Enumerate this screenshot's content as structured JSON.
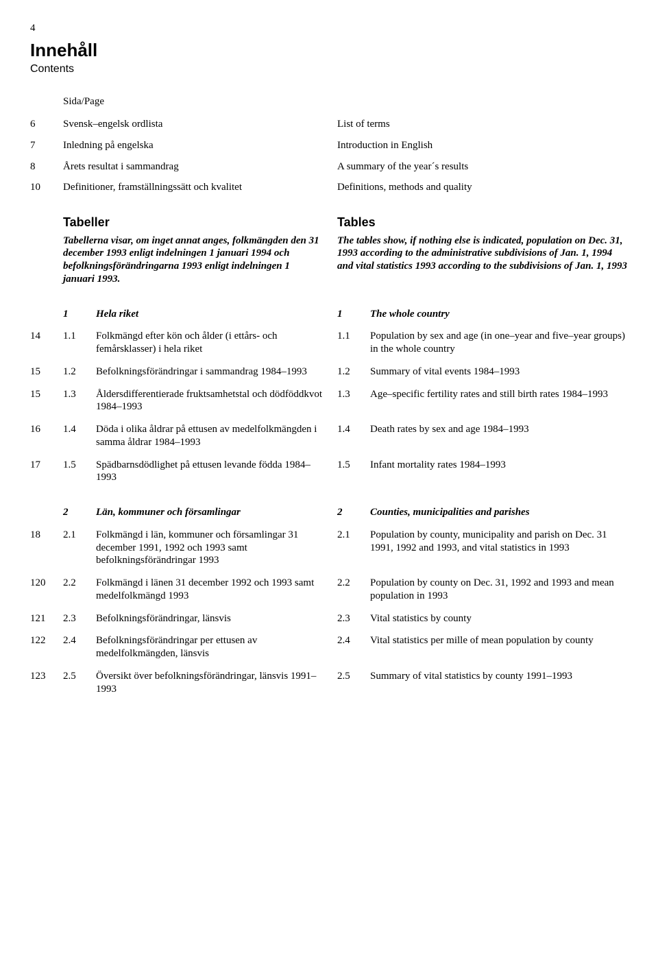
{
  "pageNumber": "4",
  "title": "Innehåll",
  "subtitle": "Contents",
  "sidaLabel": "Sida/Page",
  "topItems": [
    {
      "page": "6",
      "sv": "Svensk–engelsk ordlista",
      "en": "List of terms"
    },
    {
      "page": "7",
      "sv": "Inledning på engelska",
      "en": "Introduction in English"
    },
    {
      "page": "8",
      "sv": "Årets resultat i sammandrag",
      "en": "A summary of the year´s results"
    },
    {
      "page": "10",
      "sv": "Definitioner, framställningssätt och kvalitet",
      "en": "Definitions, methods and quality"
    }
  ],
  "tabeller": {
    "headSv": "Tabeller",
    "noteSv": "Tabellerna visar, om inget annat anges, folkmängden den 31 december 1993 enligt indelningen 1 januari 1994 och befolkningsförändringarna 1993 enligt indelningen 1 januari 1993.",
    "headEn": "Tables",
    "noteEn": "The tables show, if nothing else is indicated, population on Dec. 31, 1993 according to the administrative subdivisions of Jan. 1, 1994 and vital statistics 1993 according to the subdivisions of Jan. 1, 1993"
  },
  "section1": {
    "numSv": "1",
    "titleSv": "Hela riket",
    "numEn": "1",
    "titleEn": "The whole country",
    "items": [
      {
        "page": "14",
        "num": "1.1",
        "sv": "Folkmängd efter kön och ålder (i ettårs- och femårsklasser) i hela riket",
        "en": "Population by sex and age (in one–year and five–year groups) in the whole country"
      },
      {
        "page": "15",
        "num": "1.2",
        "sv": "Befolkningsförändringar i sammandrag 1984–1993",
        "en": "Summary of vital events 1984–1993"
      },
      {
        "page": "15",
        "num": "1.3",
        "sv": "Åldersdifferentierade fruktsamhetstal och dödföddkvot 1984–1993",
        "en": "Age–specific fertility rates and still birth rates 1984–1993"
      },
      {
        "page": "16",
        "num": "1.4",
        "sv": "Döda i olika åldrar på ettusen av medelfolkmängden i samma åldrar 1984–1993",
        "en": "Death rates by sex and age 1984–1993"
      },
      {
        "page": "17",
        "num": "1.5",
        "sv": "Spädbarnsdödlighet på ettusen levande födda 1984–1993",
        "en": "Infant mortality rates 1984–1993"
      }
    ]
  },
  "section2": {
    "numSv": "2",
    "titleSv": "Län, kommuner och församlingar",
    "numEn": "2",
    "titleEn": "Counties, municipalities and parishes",
    "items": [
      {
        "page": "18",
        "num": "2.1",
        "sv": "Folkmängd i län, kommuner och församlingar 31 december 1991, 1992 och 1993 samt befolkningsförändringar 1993",
        "en": "Population by county, municipality and parish on Dec. 31 1991, 1992 and 1993, and vital statistics in 1993"
      },
      {
        "page": "120",
        "num": "2.2",
        "sv": "Folkmängd i länen 31 december 1992 och 1993 samt medelfolkmängd 1993",
        "en": "Population by county on Dec. 31, 1992 and 1993 and mean population in 1993"
      },
      {
        "page": "121",
        "num": "2.3",
        "sv": "Befolkningsförändringar, länsvis",
        "en": "Vital statistics by county"
      },
      {
        "page": "122",
        "num": "2.4",
        "sv": "Befolkningsförändringar per ettusen av medelfolkmängden, länsvis",
        "en": "Vital statistics per mille of mean population by county"
      },
      {
        "page": "123",
        "num": "2.5",
        "sv": "Översikt över befolkningsförändringar, länsvis 1991–1993",
        "en": "Summary of vital statistics by county 1991–1993"
      }
    ]
  }
}
